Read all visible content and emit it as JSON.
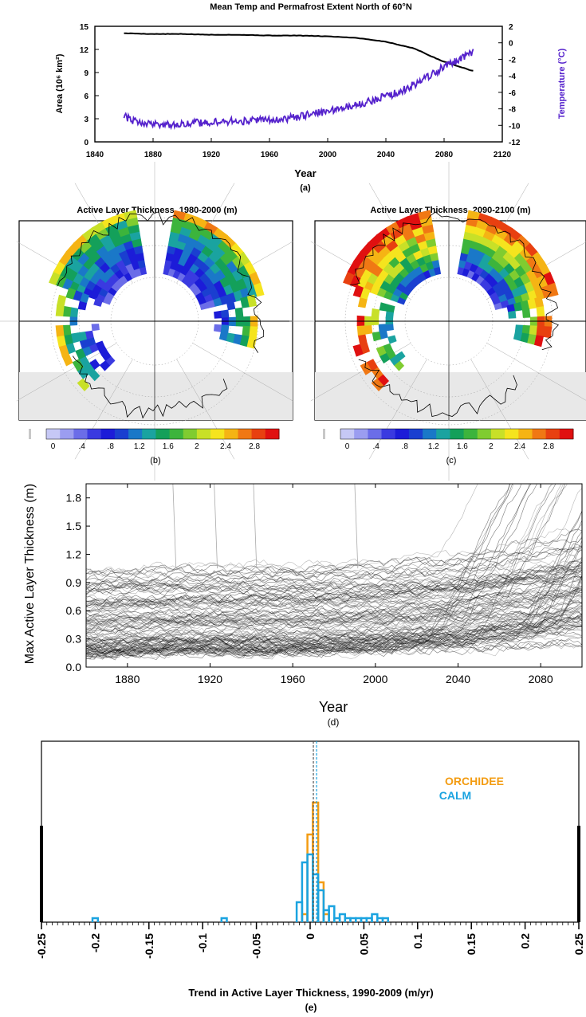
{
  "chart_data": [
    {
      "id": "a",
      "type": "line",
      "title": "Mean Temp and Permafrost Extent North of 60°N",
      "xlabel": "Year",
      "ylabel_left": "Area (10⁶ km²)",
      "ylabel_right": "Temperature (°C)",
      "panel_label": "(a)",
      "xlim": [
        1840,
        2120
      ],
      "ylim_left": [
        0,
        15
      ],
      "ylim_right": [
        -12,
        2
      ],
      "x_ticks": [
        "1840",
        "1880",
        "1920",
        "1960",
        "2000",
        "2040",
        "2080",
        "2120"
      ],
      "y_left_ticks": [
        "0",
        "3",
        "6",
        "9",
        "12",
        "15"
      ],
      "y_right_ticks": [
        "-12",
        "-10",
        "-8",
        "-6",
        "-4",
        "-2",
        "0",
        "2"
      ],
      "series": [
        {
          "axis": "left",
          "color": "#000000",
          "x": [
            1860,
            1880,
            1900,
            1920,
            1940,
            1960,
            1980,
            2000,
            2020,
            2040,
            2060,
            2070,
            2080,
            2090,
            2100
          ],
          "values": [
            14.1,
            14.0,
            14.0,
            13.9,
            13.9,
            13.8,
            13.8,
            13.7,
            13.5,
            13.0,
            12.1,
            11.2,
            10.4,
            9.8,
            9.2
          ]
        },
        {
          "axis": "right",
          "color": "#5522cc",
          "x": [
            1860,
            1870,
            1880,
            1890,
            1900,
            1910,
            1920,
            1930,
            1940,
            1950,
            1960,
            1970,
            1980,
            1990,
            2000,
            2010,
            2020,
            2030,
            2040,
            2050,
            2060,
            2070,
            2080,
            2090,
            2100
          ],
          "values": [
            -8.9,
            -9.7,
            -9.8,
            -9.9,
            -9.8,
            -9.7,
            -9.6,
            -9.5,
            -9.5,
            -9.4,
            -9.3,
            -9.2,
            -9.0,
            -8.6,
            -8.3,
            -7.9,
            -7.5,
            -7.0,
            -6.5,
            -5.9,
            -5.0,
            -4.0,
            -2.9,
            -2.0,
            -1.2
          ]
        }
      ]
    },
    {
      "id": "b",
      "type": "heatmap",
      "title": "Active Layer Thickness, 1980-2000 (m)",
      "panel_label": "(b)",
      "colorbar_labels": [
        "0",
        ".4",
        ".8",
        "1.2",
        "1.6",
        "2",
        "2.4",
        "2.8"
      ]
    },
    {
      "id": "c",
      "type": "heatmap",
      "title": "Active Layer Thickness, 2090-2100 (m)",
      "panel_label": "(c)",
      "colorbar_labels": [
        "0",
        ".4",
        ".8",
        "1.2",
        "1.6",
        "2",
        "2.4",
        "2.8"
      ]
    },
    {
      "id": "d",
      "type": "line",
      "ylabel": "Max Active Layer Thickness (m)",
      "xlabel": "Year",
      "panel_label": "(d)",
      "xlim": [
        1860,
        2100
      ],
      "ylim": [
        0,
        1.95
      ],
      "x_ticks": [
        "1880",
        "1920",
        "1960",
        "2000",
        "2040",
        "2080"
      ],
      "y_ticks": [
        "0.0",
        "0.3",
        "0.6",
        "0.9",
        "1.2",
        "1.5",
        "1.8"
      ],
      "summary_series": [
        {
          "name_hidden": "ensemble-median",
          "x": [
            1860,
            1880,
            1900,
            1920,
            1940,
            1960,
            1980,
            2000,
            2020,
            2040,
            2060,
            2080,
            2100
          ],
          "values": [
            0.38,
            0.4,
            0.41,
            0.42,
            0.42,
            0.42,
            0.43,
            0.44,
            0.47,
            0.5,
            0.55,
            0.6,
            0.66
          ]
        }
      ]
    },
    {
      "id": "e",
      "type": "bar",
      "xlabel": "Trend in Active Layer Thickness, 1990-2009 (m/yr)",
      "panel_label": "(e)",
      "xlim": [
        -0.25,
        0.25
      ],
      "x_ticks": [
        "-0.25",
        "-0.2",
        "-0.15",
        "-0.1",
        "-0.05",
        "0",
        "0.05",
        "0.1",
        "0.15",
        "0.2",
        "0.25"
      ],
      "legend": [
        "ORCHIDEE",
        "CALM"
      ],
      "legend_position": "top-right",
      "series": [
        {
          "name": "ORCHIDEE",
          "color": "#f39c12",
          "x": [
            -0.005,
            0.0,
            0.005,
            0.01,
            0.015
          ],
          "values": [
            2,
            22,
            30,
            10,
            2
          ]
        },
        {
          "name": "CALM",
          "color": "#1aa3e0",
          "x": [
            -0.2,
            -0.08,
            -0.01,
            -0.005,
            0.0,
            0.005,
            0.01,
            0.015,
            0.02,
            0.025,
            0.03,
            0.035,
            0.04,
            0.045,
            0.05,
            0.055,
            0.06,
            0.065,
            0.07
          ],
          "values": [
            1,
            1,
            5,
            15,
            17,
            12,
            8,
            3,
            4,
            1,
            2,
            1,
            1,
            1,
            1,
            1,
            2,
            1,
            1
          ]
        }
      ],
      "dashed_lines_x": [
        0.003,
        0.006
      ]
    }
  ]
}
